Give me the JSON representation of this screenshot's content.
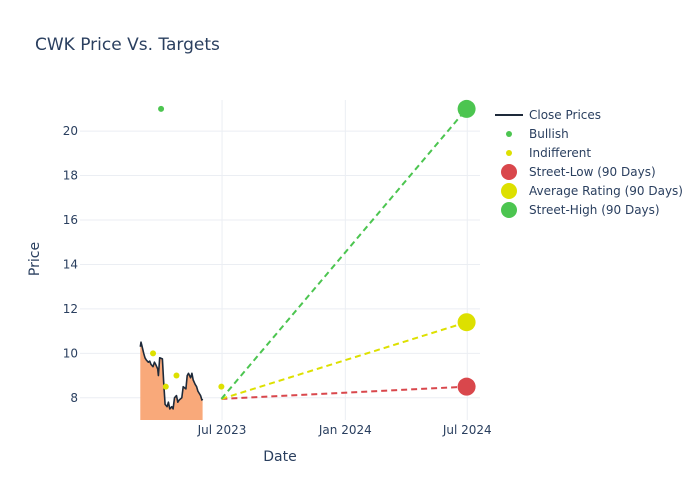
{
  "chart_data": {
    "type": "line",
    "title": "CWK Price Vs. Targets",
    "xlabel": "Date",
    "ylabel": "Price",
    "x_type": "date",
    "xlim": [
      "2022-12-01",
      "2024-07-20"
    ],
    "ylim": [
      7.0,
      21.4
    ],
    "x_ticks": [
      {
        "date": "2023-07-01",
        "label": "Jul 2023"
      },
      {
        "date": "2024-01-01",
        "label": "Jan 2024"
      },
      {
        "date": "2024-07-01",
        "label": "Jul 2024"
      }
    ],
    "y_ticks": [
      8,
      10,
      12,
      14,
      16,
      18,
      20
    ],
    "grid": true,
    "legend_placement": "top-right",
    "colors": {
      "close": "#1e2a3a",
      "area": "#f9a97a",
      "bullish": "#4cc550",
      "indifferent": "#dde000",
      "street_low": "#d9474c",
      "average": "#dde000",
      "street_high": "#4cc550"
    },
    "series": [
      {
        "name": "Close Prices",
        "kind": "line",
        "points": [
          [
            "2023-03-01",
            10.3
          ],
          [
            "2023-03-02",
            10.5
          ],
          [
            "2023-03-03",
            10.4
          ],
          [
            "2023-03-06",
            10.0
          ],
          [
            "2023-03-08",
            9.8
          ],
          [
            "2023-03-10",
            9.7
          ],
          [
            "2023-03-13",
            9.6
          ],
          [
            "2023-03-15",
            9.65
          ],
          [
            "2023-03-17",
            9.5
          ],
          [
            "2023-03-20",
            9.4
          ],
          [
            "2023-03-22",
            9.6
          ],
          [
            "2023-03-24",
            9.5
          ],
          [
            "2023-03-27",
            9.3
          ],
          [
            "2023-03-28",
            9.0
          ],
          [
            "2023-03-30",
            9.8
          ],
          [
            "2023-04-03",
            9.75
          ],
          [
            "2023-04-05",
            8.6
          ],
          [
            "2023-04-07",
            7.7
          ],
          [
            "2023-04-10",
            7.6
          ],
          [
            "2023-04-12",
            7.8
          ],
          [
            "2023-04-14",
            7.5
          ],
          [
            "2023-04-17",
            7.6
          ],
          [
            "2023-04-19",
            7.5
          ],
          [
            "2023-04-21",
            8.0
          ],
          [
            "2023-04-24",
            8.1
          ],
          [
            "2023-04-26",
            7.8
          ],
          [
            "2023-04-28",
            7.9
          ],
          [
            "2023-05-02",
            8.0
          ],
          [
            "2023-05-04",
            8.5
          ],
          [
            "2023-05-08",
            8.4
          ],
          [
            "2023-05-10",
            9.0
          ],
          [
            "2023-05-12",
            9.1
          ],
          [
            "2023-05-15",
            8.9
          ],
          [
            "2023-05-17",
            9.1
          ],
          [
            "2023-05-19",
            8.8
          ],
          [
            "2023-05-22",
            8.6
          ],
          [
            "2023-05-24",
            8.5
          ],
          [
            "2023-05-26",
            8.3
          ],
          [
            "2023-05-30",
            8.1
          ],
          [
            "2023-06-01",
            7.9
          ],
          [
            "2023-06-02",
            7.95
          ]
        ]
      },
      {
        "name": "Bullish",
        "kind": "markers",
        "points": [
          [
            "2023-04-01",
            21.0
          ]
        ]
      },
      {
        "name": "Indifferent",
        "kind": "markers",
        "points": [
          [
            "2023-03-20",
            10.0
          ],
          [
            "2023-04-08",
            8.5
          ],
          [
            "2023-04-24",
            9.0
          ],
          [
            "2023-06-30",
            8.5
          ]
        ]
      },
      {
        "name": "Street-Low (90 Days)",
        "kind": "target",
        "from": [
          "2023-06-30",
          7.95
        ],
        "to": [
          "2024-06-30",
          8.5
        ]
      },
      {
        "name": "Average Rating (90 Days)",
        "kind": "target",
        "from": [
          "2023-06-30",
          7.95
        ],
        "to": [
          "2024-06-30",
          11.4
        ]
      },
      {
        "name": "Street-High (90 Days)",
        "kind": "target",
        "from": [
          "2023-06-30",
          7.95
        ],
        "to": [
          "2024-06-30",
          21.0
        ]
      }
    ],
    "legend": [
      {
        "label": "Close Prices",
        "symbol": "line",
        "color_key": "close"
      },
      {
        "label": "Bullish",
        "symbol": "small-dot",
        "color_key": "bullish"
      },
      {
        "label": "Indifferent",
        "symbol": "small-dot",
        "color_key": "indifferent"
      },
      {
        "label": "Street-Low (90 Days)",
        "symbol": "big-dot",
        "color_key": "street_low"
      },
      {
        "label": "Average Rating (90 Days)",
        "symbol": "big-dot",
        "color_key": "average"
      },
      {
        "label": "Street-High (90 Days)",
        "symbol": "big-dot",
        "color_key": "street_high"
      }
    ]
  }
}
